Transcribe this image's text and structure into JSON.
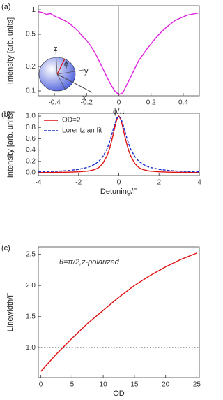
{
  "chart_data": [
    {
      "type": "line",
      "panel_label": "(a)",
      "xlabel": "ϕ/π",
      "ylabel": "Intensity [arb. units]",
      "log_y": true,
      "xlim": [
        -0.5,
        0.5
      ],
      "ylim": [
        0.087,
        1.13
      ],
      "xticks": [
        -0.4,
        -0.2,
        0,
        0.2,
        0.4
      ],
      "yticks": [
        1,
        0.5,
        0.2,
        0.1
      ],
      "vline": 0,
      "inset_labels": [
        "z",
        "y",
        "x",
        "ϕ"
      ],
      "x": [
        -0.5,
        -0.475,
        -0.45,
        -0.425,
        -0.4,
        -0.375,
        -0.35,
        -0.325,
        -0.3,
        -0.275,
        -0.25,
        -0.225,
        -0.2,
        -0.175,
        -0.15,
        -0.125,
        -0.1,
        -0.075,
        -0.05,
        -0.025,
        0,
        0.025,
        0.05,
        0.075,
        0.1,
        0.125,
        0.15,
        0.175,
        0.2,
        0.225,
        0.25,
        0.275,
        0.3,
        0.325,
        0.35,
        0.375,
        0.4,
        0.425,
        0.45,
        0.475,
        0.5
      ],
      "series": [
        {
          "color": "#e020e0",
          "values": [
            0.95,
            0.93,
            0.88,
            0.9,
            0.84,
            0.8,
            0.76,
            0.72,
            0.66,
            0.6,
            0.54,
            0.47,
            0.42,
            0.36,
            0.3,
            0.24,
            0.19,
            0.15,
            0.12,
            0.1,
            0.09,
            0.095,
            0.12,
            0.15,
            0.19,
            0.24,
            0.28,
            0.33,
            0.38,
            0.44,
            0.5,
            0.56,
            0.62,
            0.68,
            0.74,
            0.78,
            0.82,
            0.86,
            0.88,
            0.9,
            0.92
          ]
        }
      ]
    },
    {
      "type": "line",
      "panel_label": "(b)",
      "xlabel": "Detuning/Γ",
      "ylabel": "Intensity [arb. units]",
      "xlim": [
        -4,
        4
      ],
      "ylim": [
        -0.05,
        1.05
      ],
      "xticks": [
        -4,
        -2,
        0,
        2,
        4
      ],
      "yticks": [
        {
          "value": 0,
          "label": "0.0"
        },
        0.2,
        0.4,
        0.6,
        0.8,
        {
          "value": 1,
          "label": "1.0"
        }
      ],
      "x": [
        -4,
        -3,
        -2.5,
        -2,
        -1.5,
        -1.2,
        -1,
        -0.8,
        -0.6,
        -0.5,
        -0.4,
        -0.3,
        -0.2,
        -0.1,
        0,
        0.1,
        0.2,
        0.3,
        0.4,
        0.5,
        0.6,
        0.8,
        1,
        1.2,
        1.5,
        2,
        2.5,
        3,
        4
      ],
      "series": [
        {
          "name": "OD=2",
          "color": "#e01010",
          "dashed": false,
          "values": [
            0.003,
            0.006,
            0.009,
            0.015,
            0.03,
            0.055,
            0.09,
            0.16,
            0.29,
            0.38,
            0.5,
            0.64,
            0.8,
            0.94,
            1,
            0.94,
            0.8,
            0.64,
            0.5,
            0.38,
            0.29,
            0.16,
            0.09,
            0.055,
            0.03,
            0.015,
            0.009,
            0.006,
            0.003
          ]
        },
        {
          "name": "Lorentzian fit",
          "color": "#1a2fd0",
          "dashed": true,
          "values": [
            0.0154,
            0.027,
            0.0385,
            0.0588,
            0.1,
            0.148,
            0.2,
            0.281,
            0.41,
            0.5,
            0.61,
            0.735,
            0.862,
            0.962,
            1,
            0.962,
            0.862,
            0.735,
            0.61,
            0.5,
            0.41,
            0.281,
            0.2,
            0.148,
            0.1,
            0.0588,
            0.0385,
            0.027,
            0.0154
          ]
        }
      ]
    },
    {
      "type": "line",
      "panel_label": "(c)",
      "xlabel": "OD",
      "ylabel": "Linewidth/Γ",
      "annotation": "θ=π/2,z-polarized",
      "xlim": [
        -0.4,
        25.4
      ],
      "ylim": [
        0.52,
        2.62
      ],
      "xticks": [
        0,
        5,
        10,
        15,
        20,
        25
      ],
      "yticks": [
        {
          "value": 1,
          "label": "1.0"
        },
        1.5,
        {
          "value": 2,
          "label": "2.0"
        },
        2.5
      ],
      "hline": 1,
      "x": [
        0,
        2.5,
        5,
        7.5,
        10,
        12.5,
        15,
        17.5,
        20,
        22.5,
        25
      ],
      "series": [
        {
          "color": "#e01010",
          "values": [
            0.62,
            0.9,
            1.15,
            1.39,
            1.6,
            1.81,
            2.0,
            2.16,
            2.3,
            2.42,
            2.52
          ]
        }
      ]
    }
  ]
}
